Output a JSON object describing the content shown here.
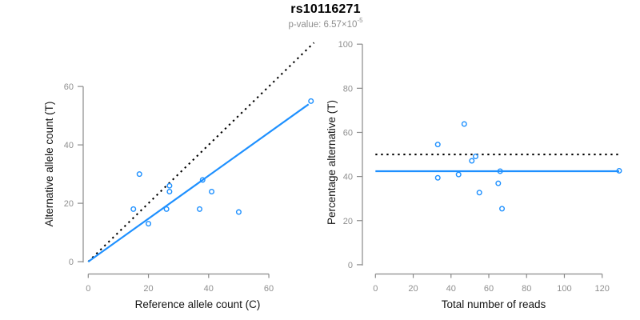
{
  "header": {
    "title": "rs10116271",
    "p_value_prefix": "p-value: 6.57×10",
    "p_value_exponent": "-5"
  },
  "colors": {
    "accent_blue": "#1E90FF",
    "reference_black": "#000000",
    "axis_gray": "#8a8a8a",
    "tick_label_gray": "#8f8f8f"
  },
  "chart_data": [
    {
      "type": "scatter",
      "name": "allele-counts-scatter",
      "xlabel": "Reference allele count (C)",
      "ylabel": "Alternative allele count (T)",
      "xticks": [
        0,
        20,
        40,
        60
      ],
      "yticks": [
        0,
        20,
        40,
        60
      ],
      "xlim": [
        0,
        75
      ],
      "ylim": [
        0,
        75
      ],
      "grid": false,
      "legend": null,
      "marker": "open-circle",
      "point_color": "#1E90FF",
      "points": [
        [
          15,
          18
        ],
        [
          17,
          30
        ],
        [
          20,
          13
        ],
        [
          26,
          18
        ],
        [
          27,
          24
        ],
        [
          27,
          26
        ],
        [
          37,
          18
        ],
        [
          38,
          28
        ],
        [
          41,
          24
        ],
        [
          50,
          17
        ],
        [
          74,
          55
        ]
      ],
      "lines": [
        {
          "name": "identity-line",
          "style": "dotted",
          "color": "#000000",
          "from": [
            0,
            0
          ],
          "to": [
            75,
            75
          ]
        },
        {
          "name": "fit-line",
          "style": "solid",
          "color": "#1E90FF",
          "from": [
            0,
            0
          ],
          "to": [
            73.2,
            53.9
          ]
        }
      ]
    },
    {
      "type": "scatter",
      "name": "percentage-vs-reads-scatter",
      "xlabel": "Total number of reads",
      "ylabel": "Percentage alternative (T)",
      "xticks": [
        0,
        20,
        40,
        60,
        80,
        100,
        120
      ],
      "yticks": [
        0,
        20,
        40,
        60,
        80,
        100
      ],
      "xlim": [
        0,
        130
      ],
      "ylim": [
        0,
        100
      ],
      "grid": false,
      "legend": null,
      "marker": "open-circle",
      "point_color": "#1E90FF",
      "points": [
        [
          33,
          54.5
        ],
        [
          47,
          63.8
        ],
        [
          33,
          39.4
        ],
        [
          44,
          40.9
        ],
        [
          51,
          47.1
        ],
        [
          53,
          49.1
        ],
        [
          55,
          32.7
        ],
        [
          66,
          42.4
        ],
        [
          65,
          36.9
        ],
        [
          67,
          25.4
        ],
        [
          129,
          42.6
        ]
      ],
      "lines": [
        {
          "name": "expected-50pct-line",
          "style": "dotted",
          "color": "#000000",
          "from": [
            0,
            50
          ],
          "to": [
            129.4,
            50
          ]
        },
        {
          "name": "observed-rate-line",
          "style": "solid",
          "color": "#1E90FF",
          "from": [
            0,
            42.4
          ],
          "to": [
            129,
            42.4
          ]
        }
      ]
    }
  ]
}
